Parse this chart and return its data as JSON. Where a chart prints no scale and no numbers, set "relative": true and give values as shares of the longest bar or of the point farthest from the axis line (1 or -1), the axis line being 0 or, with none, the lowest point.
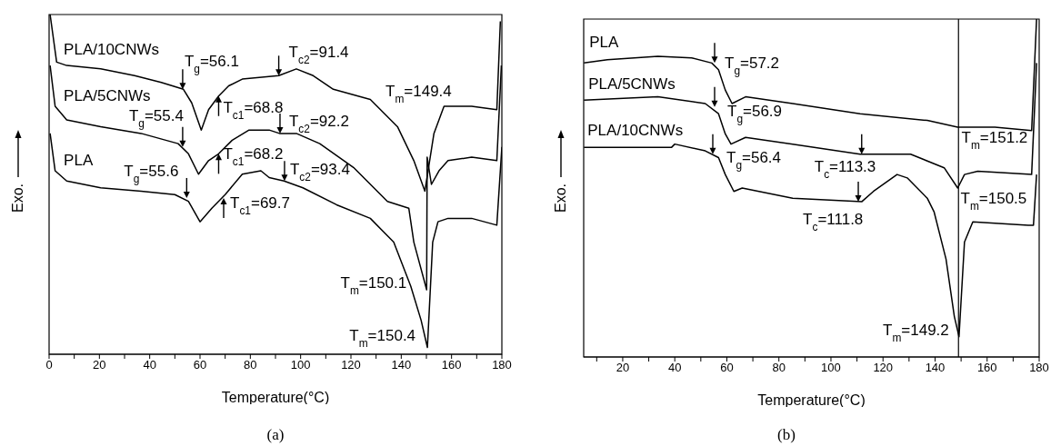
{
  "chart_data": [
    {
      "type": "line",
      "xlabel": "Temperature(°C)",
      "ylabel": "Exo.",
      "relative": true,
      "xlim": [
        0,
        180
      ],
      "xticks": [
        0,
        {
          "value": 10,
          "label": null
        },
        20,
        {
          "value": 30,
          "label": null
        },
        40,
        {
          "value": 50,
          "label": null
        },
        60,
        {
          "value": 70,
          "label": null
        },
        80,
        {
          "value": 90,
          "label": null
        },
        100,
        {
          "value": 110,
          "label": null
        },
        120,
        {
          "value": 130,
          "label": null
        },
        140,
        {
          "value": 150,
          "label": null
        },
        160,
        {
          "value": 170,
          "label": null
        },
        180
      ],
      "line_style": "solid",
      "series": [
        {
          "name": "PLA/10CNWs",
          "color": "#000000",
          "x": [
            0.4,
            3,
            7,
            20.5,
            34,
            44.6,
            53.4,
            56.7,
            60.5,
            63.4,
            67.4,
            71.4,
            76.8,
            91.3,
            98.3,
            105,
            113,
            127.7,
            138.5,
            145,
            149.4,
            153,
            157,
            168,
            178,
            179.4
          ],
          "values": [
            1,
            0.86,
            0.85,
            0.84,
            0.82,
            0.8,
            0.78,
            0.74,
            0.66,
            0.72,
            0.76,
            0.79,
            0.81,
            0.82,
            0.84,
            0.82,
            0.78,
            0.75,
            0.67,
            0.57,
            0.48,
            0.65,
            0.73,
            0.73,
            0.72,
            0.98
          ]
        },
        {
          "name": "PLA/5CNWs",
          "color": "#000000",
          "x": [
            0.4,
            2.4,
            7,
            20.5,
            36.6,
            51.3,
            55.4,
            59.4,
            63.4,
            67.4,
            72.8,
            79.5,
            87.5,
            91.6,
            98.3,
            107.6,
            121,
            134.5,
            143,
            145,
            150.1,
            150.3,
            152,
            155,
            158.6,
            168,
            178,
            179.8
          ],
          "values": [
            0.85,
            0.73,
            0.69,
            0.67,
            0.65,
            0.62,
            0.59,
            0.53,
            0.57,
            0.59,
            0.63,
            0.66,
            0.66,
            0.65,
            0.65,
            0.62,
            0.55,
            0.45,
            0.43,
            0.33,
            0.19,
            0.58,
            0.5,
            0.54,
            0.57,
            0.58,
            0.57,
            0.85
          ]
        },
        {
          "name": "PLA",
          "color": "#000000",
          "x": [
            0.4,
            2.4,
            7,
            20.5,
            36.6,
            50,
            55.4,
            60,
            64.7,
            70,
            76.8,
            84.2,
            87.5,
            93.4,
            100.9,
            114.3,
            127.7,
            137,
            143.8,
            147.9,
            150.4,
            152.5,
            154.6,
            158.6,
            168,
            178,
            180
          ],
          "values": [
            0.65,
            0.54,
            0.51,
            0.49,
            0.48,
            0.47,
            0.45,
            0.39,
            0.43,
            0.47,
            0.53,
            0.54,
            0.52,
            0.51,
            0.49,
            0.44,
            0.4,
            0.33,
            0.2,
            0.1,
            0.02,
            0.33,
            0.39,
            0.4,
            0.4,
            0.38,
            0.61
          ]
        }
      ],
      "annotations": [
        {
          "text": "T$_{g}$=56.1",
          "x": 53.1,
          "y": 0.78
        },
        {
          "text": "T$_{c2}$=91.4",
          "x": 91.3,
          "y": 0.82
        },
        {
          "text": "T$_{c1}$=68.8",
          "x": 67.4,
          "y": 0.76
        },
        {
          "text": "T$_{g}$=55.4",
          "x": 53.1,
          "y": 0.61
        },
        {
          "text": "T$_{c2}$=92.2",
          "x": 91.8,
          "y": 0.65
        },
        {
          "text": "T$_{c1}$=68.2",
          "x": 67.4,
          "y": 0.59
        },
        {
          "text": "T$_{g}$=55.6",
          "x": 54.7,
          "y": 0.46
        },
        {
          "text": "T$_{c2}$=93.4",
          "x": 93.6,
          "y": 0.51
        },
        {
          "text": "T$_{c1}$=69.7",
          "x": 69.4,
          "y": 0.46
        },
        {
          "text": "T$_{m}$=150.1",
          "x": 150.1,
          "y": 0.19
        },
        {
          "text": "T$_{m}$=150.4",
          "x": 150.4,
          "y": 0.02
        },
        "T$_{m}$=149.4",
        "(a)"
      ]
    },
    {
      "type": "line",
      "xlabel": "Temperature(°C)",
      "ylabel": "Exo.",
      "relative": true,
      "xlim": [
        5,
        180
      ],
      "xticks": [
        {
          "value": 10,
          "label": null
        },
        20,
        {
          "value": 30,
          "label": null
        },
        40,
        {
          "value": 50,
          "label": null
        },
        60,
        {
          "value": 70,
          "label": null
        },
        80,
        {
          "value": 90,
          "label": null
        },
        100,
        {
          "value": 110,
          "label": null
        },
        120,
        {
          "value": 130,
          "label": null
        },
        140,
        {
          "value": 150,
          "label": null
        },
        160,
        {
          "value": 170,
          "label": null
        },
        180
      ],
      "line_style": "solid",
      "series": [
        {
          "name": "PLA",
          "color": "#000000",
          "x": [
            5.1,
            14.1,
            33.5,
            46.5,
            54.2,
            56.8,
            59.4,
            62,
            67.2,
            85.3,
            111.2,
            137,
            148.7,
            163,
            177.1,
            179
          ],
          "values": [
            0.87,
            0.88,
            0.89,
            0.885,
            0.87,
            0.85,
            0.79,
            0.75,
            0.77,
            0.75,
            0.72,
            0.7,
            0.68,
            0.68,
            0.67,
            1
          ]
        },
        {
          "name": "PLA/5CNWs",
          "color": "#000000",
          "x": [
            5.1,
            33.5,
            51.7,
            56.8,
            59.4,
            61.6,
            67.2,
            85.3,
            111.2,
            130.6,
            143.5,
            148.7,
            151.3,
            156.4,
            177.1,
            179
          ],
          "values": [
            0.76,
            0.77,
            0.75,
            0.72,
            0.66,
            0.63,
            0.65,
            0.63,
            0.6,
            0.6,
            0.56,
            0.5,
            0.54,
            0.55,
            0.54,
            0.87
          ]
        },
        {
          "name": "PLA/10CNWs",
          "color": "#000000",
          "x": [
            5.1,
            38.7,
            40,
            51.7,
            56.8,
            59.4,
            62.7,
            65.9,
            85.3,
            111.9,
            116.3,
            125.4,
            129.3,
            137,
            139.6,
            144.2,
            147.4,
            149.2,
            151.3,
            154.5,
            175.8,
            177.8,
            179
          ],
          "values": [
            0.62,
            0.62,
            0.63,
            0.61,
            0.59,
            0.54,
            0.49,
            0.5,
            0.47,
            0.46,
            0.49,
            0.54,
            0.53,
            0.47,
            0.43,
            0.29,
            0.12,
            0.06,
            0.34,
            0.4,
            0.39,
            0.39,
            0.54
          ]
        }
      ],
      "ref_lines": [
        {
          "axis": "x",
          "value": 149,
          "color": "#000000"
        }
      ],
      "annotations": [
        {
          "text": "T$_{g}$=57.2",
          "x": 55.3,
          "y": 0.87
        },
        {
          "text": "T$_{g}$=56.9",
          "x": 55.3,
          "y": 0.74
        },
        {
          "text": "T$_{g}$=56.4",
          "x": 54.6,
          "y": 0.6
        },
        {
          "text": "T$_{c}$=113.3",
          "x": 111.8,
          "y": 0.6
        },
        {
          "text": "T$_{c}$=111.8",
          "x": 110.5,
          "y": 0.46
        },
        {
          "text": "T$_{m}$=151.2",
          "x": 151.2,
          "y": 0.68
        },
        {
          "text": "T$_{m}$=150.5",
          "x": 150.5,
          "y": 0.5
        },
        {
          "text": "T$_{m}$=149.2",
          "x": 149.2,
          "y": 0.06
        },
        "(b)"
      ]
    }
  ]
}
